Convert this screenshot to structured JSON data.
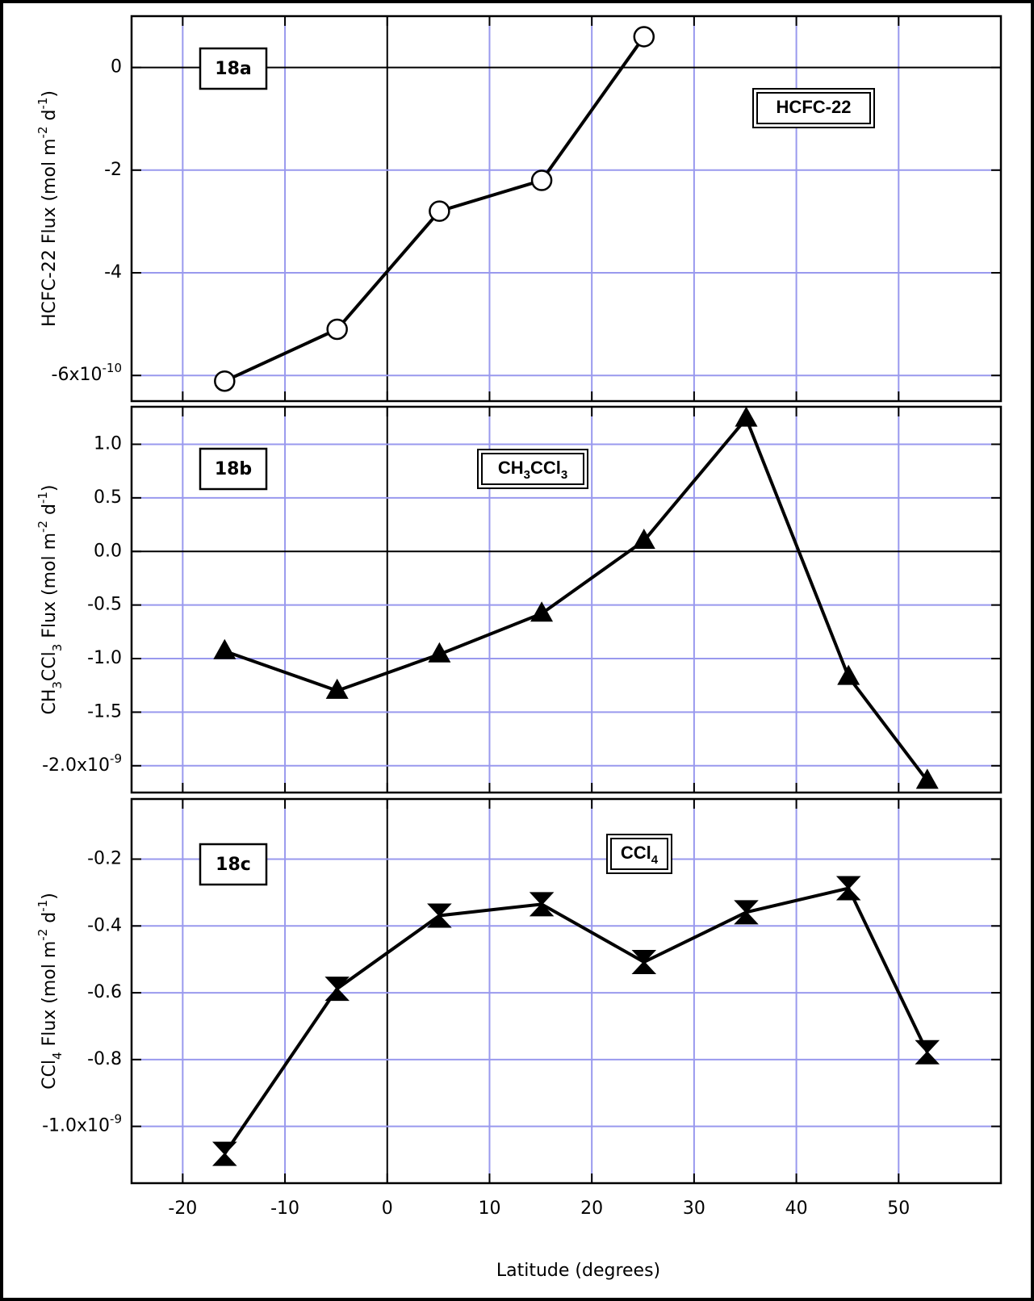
{
  "chart_data": [
    {
      "type": "line",
      "label": "18a",
      "title": [
        "HCFC-22"
      ],
      "ylabel": [
        "HCFC-22 Flux  (mol m",
        {
          "sup": "-2"
        },
        " d",
        {
          "sup": "-1"
        },
        ")"
      ],
      "x": [
        -15.9,
        -4.9,
        5.1,
        15.1,
        25.1
      ],
      "values": [
        -6.11,
        -5.1,
        -2.8,
        -2.2,
        0.6
      ],
      "color": "#000000",
      "marker": "circle",
      "xlim": [
        -25,
        60
      ],
      "xticks": [
        -20,
        -10,
        0,
        10,
        20,
        30,
        40,
        50
      ],
      "ylim": [
        -6.5,
        1.0
      ],
      "yticks": [
        0,
        -2,
        -4,
        {
          "value": -6,
          "label": "-6x10"
        }
      ],
      "ytick_exponent": "-10",
      "grid": true,
      "grid_color": "#9999ee"
    },
    {
      "type": "line",
      "label": "18b",
      "title": [
        "CH",
        {
          "sub": "3"
        },
        "CCl",
        {
          "sub": "3"
        }
      ],
      "ylabel": [
        "CH",
        {
          "sub": "3"
        },
        "CCl",
        {
          "sub": "3"
        },
        " Flux  (mol m",
        {
          "sup": "-2"
        },
        " d",
        {
          "sup": "-1"
        },
        ")"
      ],
      "x": [
        -15.9,
        -4.9,
        5.1,
        15.1,
        25.1,
        35.1,
        45.1,
        52.8
      ],
      "values": [
        -0.93,
        -1.3,
        -0.96,
        -0.58,
        0.1,
        1.24,
        -1.17,
        -2.14
      ],
      "color": "#000000",
      "marker": "triangle",
      "xlim": [
        -25,
        60
      ],
      "xticks": [
        -20,
        -10,
        0,
        10,
        20,
        30,
        40,
        50
      ],
      "ylim": [
        -2.25,
        1.35
      ],
      "yticks": [
        {
          "value": 1.0,
          "label": "1.0"
        },
        {
          "value": 0.5,
          "label": "0.5"
        },
        {
          "value": 0.0,
          "label": "0.0"
        },
        {
          "value": -0.5,
          "label": "-0.5"
        },
        {
          "value": -1.0,
          "label": "-1.0"
        },
        {
          "value": -1.5,
          "label": "-1.5"
        },
        {
          "value": -2.0,
          "label": "-2.0x10"
        }
      ],
      "ytick_exponent": "-9",
      "grid": true,
      "grid_color": "#9999ee"
    },
    {
      "type": "line",
      "label": "18c",
      "title": [
        "CCl",
        {
          "sub": "4"
        }
      ],
      "ylabel": [
        "CCl",
        {
          "sub": "4"
        },
        " Flux  (mol m",
        {
          "sup": "-2"
        },
        " d",
        {
          "sup": "-1"
        },
        ")"
      ],
      "x": [
        -15.9,
        -4.9,
        5.1,
        15.1,
        25.1,
        35.1,
        45.1,
        52.8
      ],
      "values": [
        -1.082,
        -0.588,
        -0.369,
        -0.335,
        -0.508,
        -0.359,
        -0.287,
        -0.778
      ],
      "color": "#000000",
      "marker": "hourglass",
      "xlim": [
        -25,
        60
      ],
      "xticks": [
        -20,
        -10,
        0,
        10,
        20,
        30,
        40,
        50
      ],
      "xlabel": "Latitude   (degrees)",
      "ylim": [
        -1.17,
        -0.02
      ],
      "yticks": [
        -0.2,
        -0.4,
        -0.6,
        -0.8,
        {
          "value": -1.0,
          "label": "-1.0x10"
        }
      ],
      "ytick_exponent": "-9",
      "grid": true,
      "grid_color": "#9999ee"
    }
  ]
}
